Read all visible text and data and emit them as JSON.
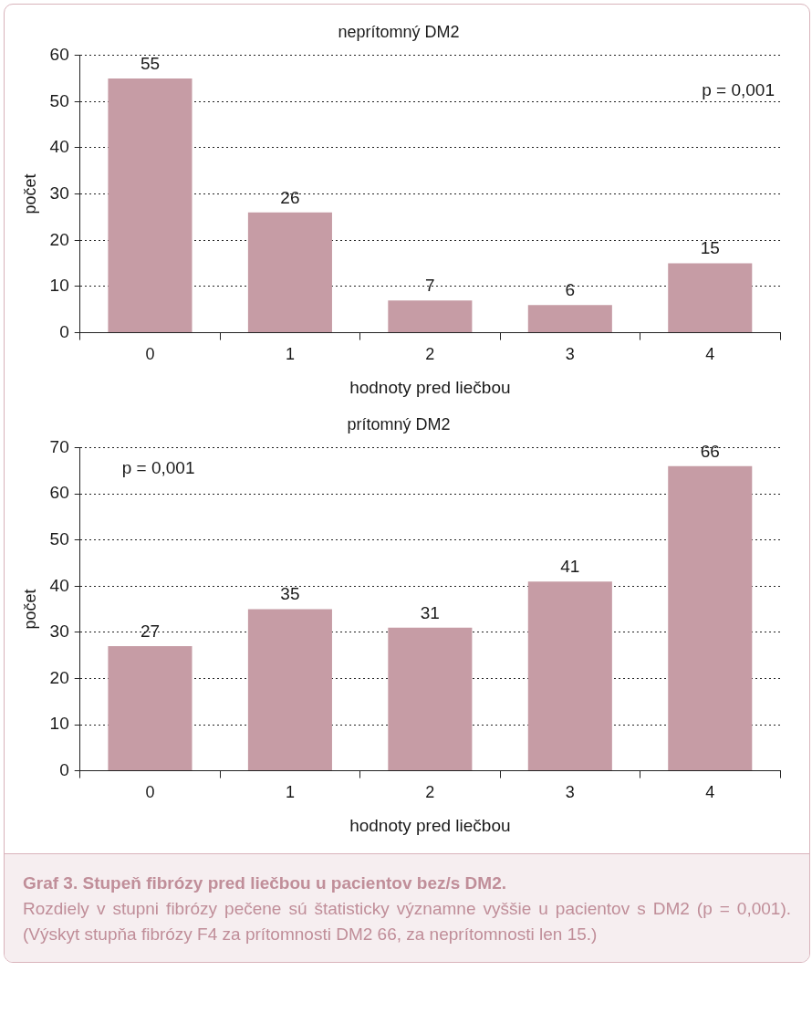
{
  "chart_data": [
    {
      "type": "bar",
      "title": "neprítomný DM2",
      "xlabel": "hodnoty pred liečbou",
      "ylabel": "počet",
      "categories": [
        "0",
        "1",
        "2",
        "3",
        "4"
      ],
      "values": [
        55,
        26,
        7,
        6,
        15
      ],
      "color": "#c69ca5",
      "ylim": [
        0,
        60
      ],
      "yticks": [
        0,
        10,
        20,
        30,
        40,
        50,
        60
      ],
      "grid": "y",
      "legend": false,
      "data_labels": true,
      "annotations": [
        "p = 0,001"
      ]
    },
    {
      "type": "bar",
      "title": "prítomný DM2",
      "xlabel": "hodnoty pred liečbou",
      "ylabel": "počet",
      "categories": [
        "0",
        "1",
        "2",
        "3",
        "4"
      ],
      "values": [
        27,
        35,
        31,
        41,
        66
      ],
      "color": "#c69ca5",
      "ylim": [
        0,
        70
      ],
      "yticks": [
        0,
        10,
        20,
        30,
        40,
        50,
        60,
        70
      ],
      "grid": "y",
      "legend": false,
      "data_labels": true,
      "annotations": [
        "p = 0,001",
        "Graf 3. Stupeň fibrózy pred liečbou u pacientov bez/s DM2.",
        "Rozdiely v stupni fibrózy pečene sú štatisticky významne vyššie u pacientov s DM2 (p = 0,001). (Výskyt stupňa fibrózy F4 za prítomnosti DM2 66, za neprítomnosti len 15.)"
      ]
    }
  ]
}
